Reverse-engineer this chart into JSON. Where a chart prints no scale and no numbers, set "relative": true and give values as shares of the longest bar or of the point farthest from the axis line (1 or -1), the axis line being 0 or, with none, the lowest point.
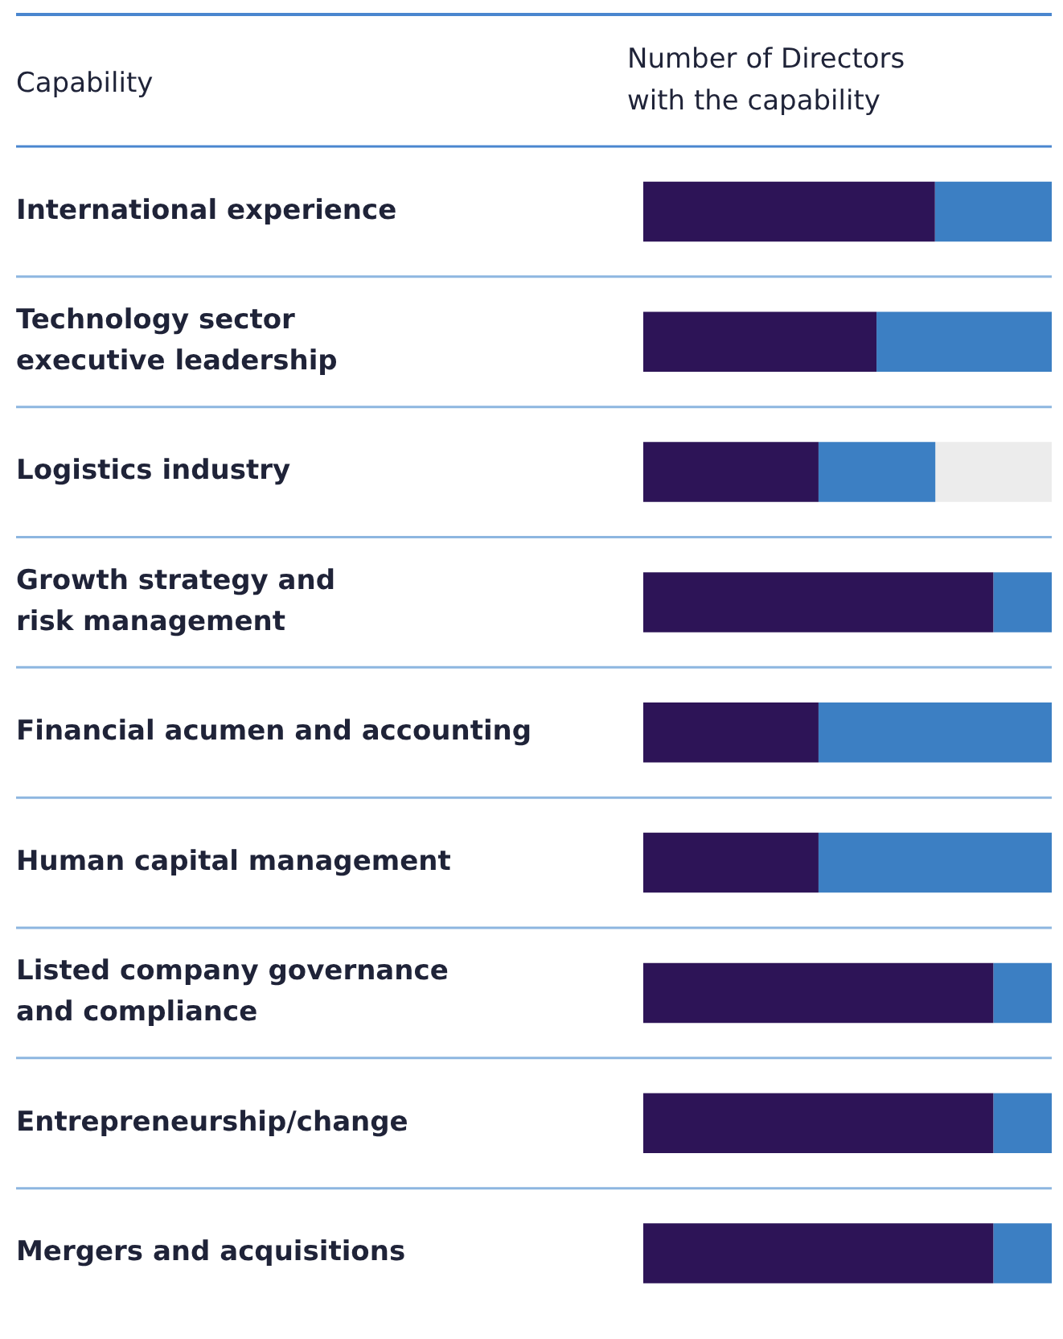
{
  "chart_data": {
    "type": "bar",
    "orientation": "horizontal",
    "stacked": true,
    "relative": true,
    "ylabel": "Capability",
    "xlabel": "Number of Directors\nwith the capability",
    "categories": [
      "International experience",
      "Technology sector\nexecutive leadership",
      "Logistics industry",
      "Growth strategy and\nrisk management",
      "Financial acumen and accounting",
      "Human capital management",
      "Listed company governance\nand compliance",
      "Entrepreneurship/change",
      "Mergers and acquisitions"
    ],
    "series": [
      {
        "color": "#2d1457",
        "values": [
          0.714,
          0.571,
          0.429,
          0.857,
          0.429,
          0.429,
          0.857,
          0.857,
          0.857
        ]
      },
      {
        "color": "#3c7fc3",
        "values": [
          0.286,
          0.429,
          0.286,
          0.143,
          0.571,
          0.571,
          0.143,
          0.143,
          0.143
        ]
      },
      {
        "color": "#ececec",
        "values": [
          null,
          null,
          0.285,
          null,
          null,
          null,
          null,
          null,
          null
        ]
      }
    ],
    "grid": "y",
    "legend": false
  }
}
